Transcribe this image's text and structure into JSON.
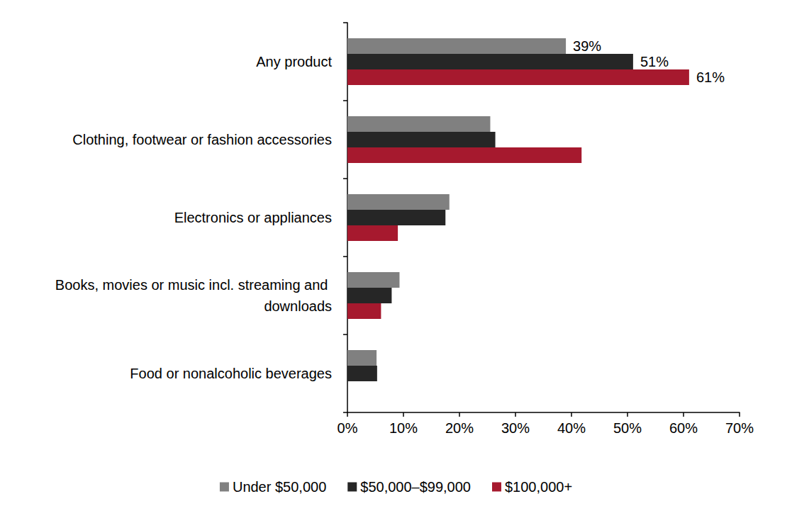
{
  "chart_data": {
    "type": "bar",
    "orientation": "horizontal",
    "categories": [
      "Any product",
      "Clothing, footwear or fashion accessories",
      "Electronics or appliances",
      "Books, movies or music incl. streaming and downloads",
      "Food or nonalcoholic beverages"
    ],
    "series": [
      {
        "name": "Under $50,000",
        "color": "#808080",
        "values": [
          39,
          25.5,
          18.2,
          9.3,
          5.2
        ],
        "value_labels": [
          "39%",
          null,
          null,
          null,
          null
        ]
      },
      {
        "name": "$50,000–$99,000",
        "color": "#262626",
        "values": [
          51,
          26.4,
          17.5,
          7.9,
          5.3
        ],
        "value_labels": [
          "51%",
          null,
          null,
          null,
          null
        ]
      },
      {
        "name": "$100,000+",
        "color": "#a6192e",
        "values": [
          61,
          41.8,
          9,
          6,
          null
        ],
        "value_labels": [
          "61%",
          null,
          null,
          null,
          null
        ]
      }
    ],
    "xlim": [
      0,
      70
    ],
    "xticks": [
      {
        "value": 0,
        "label": "0%"
      },
      {
        "value": 10,
        "label": "10%"
      },
      {
        "value": 20,
        "label": "20%"
      },
      {
        "value": 30,
        "label": "30%"
      },
      {
        "value": 40,
        "label": "40%"
      },
      {
        "value": 50,
        "label": "50%"
      },
      {
        "value": 60,
        "label": "60%"
      },
      {
        "value": 70,
        "label": "70%"
      }
    ],
    "data_labels": true,
    "grid": false,
    "legend": "bottom"
  }
}
